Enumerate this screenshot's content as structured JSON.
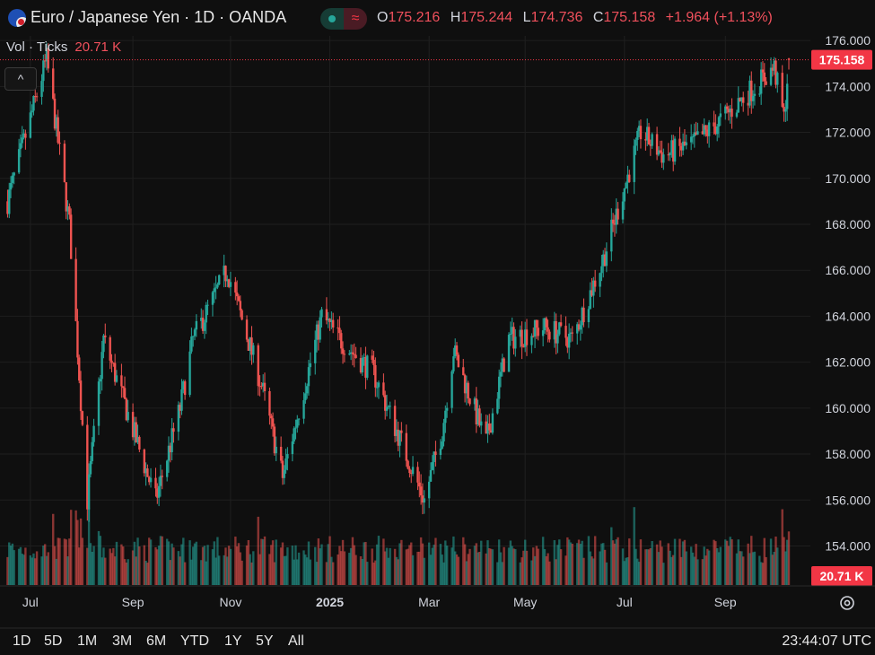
{
  "header": {
    "title": "Euro / Japanese Yen · 1D · OANDA",
    "ohlc": [
      {
        "key": "O",
        "value": "175.216"
      },
      {
        "key": "H",
        "value": "175.244"
      },
      {
        "key": "L",
        "value": "174.736"
      },
      {
        "key": "C",
        "value": "175.158"
      }
    ],
    "change": "+1.964 (+1.13%)",
    "status_icon": "market-open-dot",
    "alt_icon": "approx-wave-icon",
    "flag_icon": "eur-jpy-flag-icon"
  },
  "volume_indicator": {
    "label": "Vol · Ticks",
    "value": "20.71 K"
  },
  "colors": {
    "background": "#0f0f0f",
    "up": "#26a69a",
    "down": "#ef5350",
    "grid": "#1f1f1f",
    "price_line": "#f23645",
    "label_text": "#d1d4dc"
  },
  "chart_data": {
    "type": "candlestick",
    "symbol": "Euro / Japanese Yen",
    "interval": "1D",
    "source": "OANDA",
    "y_ticks": [
      "176.000",
      "174.000",
      "172.000",
      "170.000",
      "168.000",
      "166.000",
      "164.000",
      "162.000",
      "160.000",
      "158.000",
      "156.000",
      "154.000"
    ],
    "y_range": [
      152.3,
      176.2
    ],
    "x_labels": [
      "Jul",
      "Sep",
      "Nov",
      "2025",
      "Mar",
      "May",
      "Jul",
      "Sep"
    ],
    "current_price": "175.158",
    "current_volume_label": "20.71 K",
    "grid": true,
    "close_path_approx": [
      {
        "date": "2024-06-17",
        "close": 169.0
      },
      {
        "date": "2024-07-11",
        "close": 175.2
      },
      {
        "date": "2024-07-25",
        "close": 168.0
      },
      {
        "date": "2024-08-05",
        "close": 156.0
      },
      {
        "date": "2024-08-15",
        "close": 163.0
      },
      {
        "date": "2024-09-16",
        "close": 156.0
      },
      {
        "date": "2024-10-01",
        "close": 160.0
      },
      {
        "date": "2024-10-09",
        "close": 163.0
      },
      {
        "date": "2024-10-30",
        "close": 166.0
      },
      {
        "date": "2024-11-20",
        "close": 161.0
      },
      {
        "date": "2024-12-03",
        "close": 157.0
      },
      {
        "date": "2024-12-27",
        "close": 164.0
      },
      {
        "date": "2025-01-07",
        "close": 163.0
      },
      {
        "date": "2025-01-28",
        "close": 161.5
      },
      {
        "date": "2025-02-28",
        "close": 156.0
      },
      {
        "date": "2025-03-11",
        "close": 159.0
      },
      {
        "date": "2025-03-18",
        "close": 162.5
      },
      {
        "date": "2025-04-07",
        "close": 158.5
      },
      {
        "date": "2025-04-21",
        "close": 163.0
      },
      {
        "date": "2025-05-13",
        "close": 163.5
      },
      {
        "date": "2025-05-30",
        "close": 163.0
      },
      {
        "date": "2025-06-18",
        "close": 166.5
      },
      {
        "date": "2025-07-11",
        "close": 172.0
      },
      {
        "date": "2025-07-25",
        "close": 171.0
      },
      {
        "date": "2025-08-12",
        "close": 171.5
      },
      {
        "date": "2025-08-29",
        "close": 172.5
      },
      {
        "date": "2025-09-19",
        "close": 174.0
      },
      {
        "date": "2025-10-01",
        "close": 174.8
      },
      {
        "date": "2025-10-07",
        "close": 172.6
      },
      {
        "date": "2025-10-10",
        "close": 175.158
      }
    ]
  },
  "footer": {
    "ranges": [
      "1D",
      "5D",
      "1M",
      "3M",
      "6M",
      "YTD",
      "1Y",
      "5Y",
      "All"
    ],
    "time": "23:44:07 UTC",
    "settings_icon": "gear-icon"
  }
}
